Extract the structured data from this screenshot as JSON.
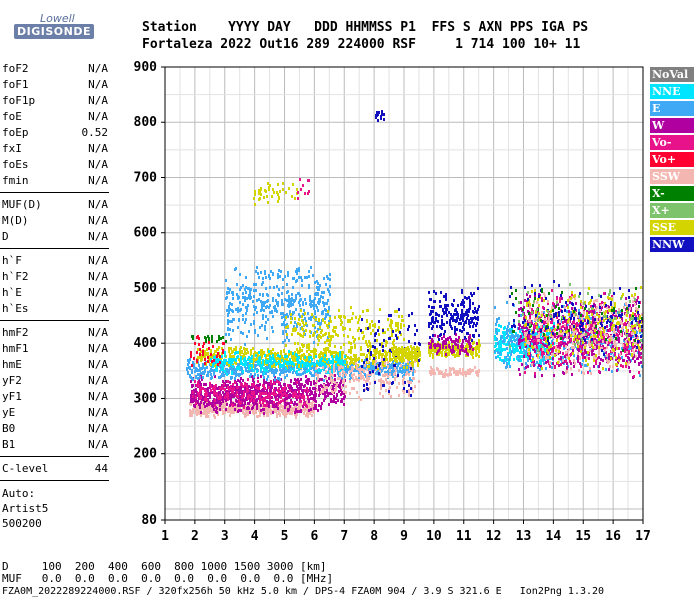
{
  "logo": {
    "top": "Lowell",
    "main": "DIGISONDE"
  },
  "header": {
    "line1": "Station    YYYY DAY   DDD HHMMSS P1  FFS S AXN PPS IGA PS",
    "line2": "Fortaleza 2022 Out16 289 224000 RSF     1 714 100 10+ 11"
  },
  "params_group1": [
    {
      "name": "foF2",
      "value": "N/A"
    },
    {
      "name": "foF1",
      "value": "N/A"
    },
    {
      "name": "foF1p",
      "value": "N/A"
    },
    {
      "name": "foE",
      "value": "N/A"
    },
    {
      "name": "foEp",
      "value": "0.52"
    },
    {
      "name": "fxI",
      "value": "N/A"
    },
    {
      "name": "foEs",
      "value": "N/A"
    },
    {
      "name": "fmin",
      "value": "N/A"
    }
  ],
  "params_group2": [
    {
      "name": "MUF(D)",
      "value": "N/A"
    },
    {
      "name": "M(D)",
      "value": "N/A"
    },
    {
      "name": "D",
      "value": "N/A"
    }
  ],
  "params_group3": [
    {
      "name": "h`F",
      "value": "N/A"
    },
    {
      "name": "h`F2",
      "value": "N/A"
    },
    {
      "name": "h`E",
      "value": "N/A"
    },
    {
      "name": "h`Es",
      "value": "N/A"
    }
  ],
  "params_group4": [
    {
      "name": "hmF2",
      "value": "N/A"
    },
    {
      "name": "hmF1",
      "value": "N/A"
    },
    {
      "name": "hmE",
      "value": "N/A"
    },
    {
      "name": "yF2",
      "value": "N/A"
    },
    {
      "name": "yF1",
      "value": "N/A"
    },
    {
      "name": "yE",
      "value": "N/A"
    },
    {
      "name": "B0",
      "value": "N/A"
    },
    {
      "name": "B1",
      "value": "N/A"
    }
  ],
  "clevel": {
    "name": "C-level",
    "value": "44"
  },
  "auto": {
    "line1": "Auto:",
    "line2": "Artist5",
    "line3": "500200"
  },
  "legend": [
    {
      "label": "NoVal",
      "color": "#808080"
    },
    {
      "label": "NNE",
      "color": "#00e5ff"
    },
    {
      "label": "E",
      "color": "#3fa9f5"
    },
    {
      "label": "W",
      "color": "#b000a0"
    },
    {
      "label": "Vo-",
      "color": "#e8128a"
    },
    {
      "label": "Vo+",
      "color": "#ff0030"
    },
    {
      "label": "SSW",
      "color": "#f4b6b0"
    },
    {
      "label": "X-",
      "color": "#008000"
    },
    {
      "label": "X+",
      "color": "#7dc36b"
    },
    {
      "label": "SSE",
      "color": "#d4d400"
    },
    {
      "label": "NNW",
      "color": "#1010c0"
    }
  ],
  "bottom": {
    "d_line": "D     100  200  400  600  800 1000 1500 3000 [km]",
    "muf_line": "MUF   0.0  0.0  0.0  0.0  0.0  0.0  0.0  0.0 [MHz]",
    "footer": "FZA0M_2022289224000.RSF / 320fx256h 50 kHz 5.0 km / DPS-4 FZA0M 904 / 3.9 S 321.6 E   Ion2Png 1.3.20"
  },
  "chart_data": {
    "type": "scatter",
    "xlabel": "",
    "ylabel": "",
    "xlim": [
      1,
      17
    ],
    "ylim": [
      80,
      900
    ],
    "xticks": [
      1,
      2,
      3,
      4,
      5,
      6,
      7,
      8,
      9,
      10,
      11,
      12,
      13,
      14,
      15,
      16,
      17
    ],
    "yticks": [
      80,
      200,
      300,
      400,
      500,
      600,
      700,
      800,
      900
    ],
    "grid": true,
    "legend_position": "right",
    "clusters": [
      {
        "color": "#f4b6b0",
        "x": [
          1.8,
          6.0
        ],
        "y": [
          268,
          300
        ],
        "n": 520
      },
      {
        "color": "#b000a0",
        "x": [
          1.8,
          6.2
        ],
        "y": [
          275,
          345
        ],
        "n": 700
      },
      {
        "color": "#e8128a",
        "x": [
          1.9,
          5.8
        ],
        "y": [
          285,
          340
        ],
        "n": 220
      },
      {
        "color": "#3fa9f5",
        "x": [
          1.7,
          9.3
        ],
        "y": [
          335,
          375
        ],
        "n": 650
      },
      {
        "color": "#d4d400",
        "x": [
          2.0,
          9.5
        ],
        "y": [
          355,
          400
        ],
        "n": 600
      },
      {
        "color": "#00e5ff",
        "x": [
          2.5,
          7.0
        ],
        "y": [
          345,
          390
        ],
        "n": 280
      },
      {
        "color": "#3fa9f5",
        "x": [
          3.0,
          6.5
        ],
        "y": [
          400,
          550
        ],
        "n": 420
      },
      {
        "color": "#d4d400",
        "x": [
          5.0,
          9.0
        ],
        "y": [
          380,
          470
        ],
        "n": 220
      },
      {
        "color": "#b000a0",
        "x": [
          6.2,
          7.0
        ],
        "y": [
          285,
          345
        ],
        "n": 90
      },
      {
        "color": "#f4b6b0",
        "x": [
          6.0,
          9.5
        ],
        "y": [
          300,
          380
        ],
        "n": 200
      },
      {
        "color": "#1010c0",
        "x": [
          7.5,
          9.5
        ],
        "y": [
          290,
          480
        ],
        "n": 90
      },
      {
        "color": "#d4d400",
        "x": [
          8.5,
          9.5
        ],
        "y": [
          370,
          400
        ],
        "n": 140
      },
      {
        "color": "#d4d400",
        "x": [
          9.8,
          11.5
        ],
        "y": [
          375,
          410
        ],
        "n": 220
      },
      {
        "color": "#1010c0",
        "x": [
          9.8,
          11.5
        ],
        "y": [
          400,
          505
        ],
        "n": 200
      },
      {
        "color": "#f4b6b0",
        "x": [
          9.8,
          11.5
        ],
        "y": [
          340,
          360
        ],
        "n": 90
      },
      {
        "color": "#b000a0",
        "x": [
          9.8,
          11.5
        ],
        "y": [
          380,
          420
        ],
        "n": 90
      },
      {
        "color": "#00e5ff",
        "x": [
          12.0,
          14.0
        ],
        "y": [
          360,
          440
        ],
        "n": 360
      },
      {
        "color": "#3fa9f5",
        "x": [
          12.0,
          17.0
        ],
        "y": [
          340,
          480
        ],
        "n": 380
      },
      {
        "color": "#b000a0",
        "x": [
          12.8,
          17.0
        ],
        "y": [
          340,
          500
        ],
        "n": 560
      },
      {
        "color": "#e8128a",
        "x": [
          13.0,
          17.0
        ],
        "y": [
          340,
          500
        ],
        "n": 280
      },
      {
        "color": "#f4b6b0",
        "x": [
          13.0,
          17.0
        ],
        "y": [
          340,
          500
        ],
        "n": 280
      },
      {
        "color": "#d4d400",
        "x": [
          13.0,
          17.0
        ],
        "y": [
          350,
          510
        ],
        "n": 220
      },
      {
        "color": "#1010c0",
        "x": [
          12.5,
          17.0
        ],
        "y": [
          380,
          520
        ],
        "n": 120
      },
      {
        "color": "#008000",
        "x": [
          12.5,
          17.0
        ],
        "y": [
          380,
          520
        ],
        "n": 50
      },
      {
        "color": "#7dc36b",
        "x": [
          12.5,
          17.0
        ],
        "y": [
          380,
          520
        ],
        "n": 50
      },
      {
        "color": "#d4d400",
        "x": [
          3.8,
          5.4
        ],
        "y": [
          650,
          700
        ],
        "n": 40
      },
      {
        "color": "#1010c0",
        "x": [
          8.0,
          8.3
        ],
        "y": [
          800,
          825
        ],
        "n": 14
      },
      {
        "color": "#e8128a",
        "x": [
          5.4,
          5.8
        ],
        "y": [
          650,
          710
        ],
        "n": 10
      },
      {
        "color": "#ff0030",
        "x": [
          1.8,
          3.0
        ],
        "y": [
          360,
          420
        ],
        "n": 40
      },
      {
        "color": "#008000",
        "x": [
          1.8,
          3.0
        ],
        "y": [
          400,
          420
        ],
        "n": 20
      }
    ]
  }
}
